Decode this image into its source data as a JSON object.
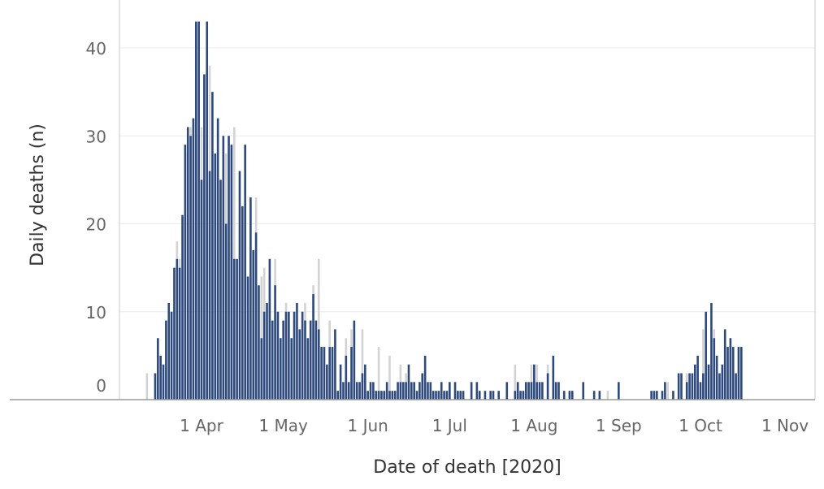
{
  "chart_data": {
    "type": "bar",
    "xlabel": "Date of death [2020]",
    "ylabel": "Daily deaths (n)",
    "ylim": [
      0,
      45
    ],
    "yticks": [
      0,
      10,
      20,
      30,
      40
    ],
    "grid": true,
    "xticks": [
      {
        "date": "2020-04-01",
        "label": "1 Apr"
      },
      {
        "date": "2020-05-01",
        "label": "1 May"
      },
      {
        "date": "2020-06-01",
        "label": "1 Jun"
      },
      {
        "date": "2020-07-01",
        "label": "1 Jul"
      },
      {
        "date": "2020-08-01",
        "label": "1 Aug"
      },
      {
        "date": "2020-09-01",
        "label": "1 Sep"
      },
      {
        "date": "2020-10-01",
        "label": "1 Oct"
      },
      {
        "date": "2020-11-01",
        "label": "1 Nov"
      }
    ],
    "series": [
      {
        "color": "#2e4a7d",
        "points": [
          [
            "2020-03-15",
            3
          ],
          [
            "2020-03-16",
            7
          ],
          [
            "2020-03-17",
            5
          ],
          [
            "2020-03-18",
            4
          ],
          [
            "2020-03-19",
            9
          ],
          [
            "2020-03-20",
            11
          ],
          [
            "2020-03-21",
            10
          ],
          [
            "2020-03-22",
            15
          ],
          [
            "2020-03-23",
            16
          ],
          [
            "2020-03-24",
            15
          ],
          [
            "2020-03-25",
            21
          ],
          [
            "2020-03-26",
            29
          ],
          [
            "2020-03-27",
            31
          ],
          [
            "2020-03-28",
            30
          ],
          [
            "2020-03-29",
            32
          ],
          [
            "2020-03-30",
            43
          ],
          [
            "2020-03-31",
            43
          ],
          [
            "2020-04-01",
            25
          ],
          [
            "2020-04-02",
            37
          ],
          [
            "2020-04-03",
            43
          ],
          [
            "2020-04-04",
            26
          ],
          [
            "2020-04-05",
            35
          ],
          [
            "2020-04-06",
            28
          ],
          [
            "2020-04-07",
            32
          ],
          [
            "2020-04-08",
            25
          ],
          [
            "2020-04-09",
            30
          ],
          [
            "2020-04-10",
            20
          ],
          [
            "2020-04-11",
            30
          ],
          [
            "2020-04-12",
            29
          ],
          [
            "2020-04-13",
            16
          ],
          [
            "2020-04-14",
            16
          ],
          [
            "2020-04-15",
            26
          ],
          [
            "2020-04-16",
            22
          ],
          [
            "2020-04-17",
            29
          ],
          [
            "2020-04-18",
            14
          ],
          [
            "2020-04-19",
            23
          ],
          [
            "2020-04-20",
            17
          ],
          [
            "2020-04-21",
            19
          ],
          [
            "2020-04-22",
            13
          ],
          [
            "2020-04-23",
            7
          ],
          [
            "2020-04-24",
            10
          ],
          [
            "2020-04-25",
            11
          ],
          [
            "2020-04-26",
            16
          ],
          [
            "2020-04-27",
            9
          ],
          [
            "2020-04-28",
            13
          ],
          [
            "2020-04-29",
            10
          ],
          [
            "2020-04-30",
            7
          ],
          [
            "2020-05-01",
            9
          ],
          [
            "2020-05-02",
            10
          ],
          [
            "2020-05-03",
            10
          ],
          [
            "2020-05-04",
            7
          ],
          [
            "2020-05-05",
            10
          ],
          [
            "2020-05-06",
            11
          ],
          [
            "2020-05-07",
            8
          ],
          [
            "2020-05-08",
            10
          ],
          [
            "2020-05-09",
            9
          ],
          [
            "2020-05-10",
            7
          ],
          [
            "2020-05-11",
            9
          ],
          [
            "2020-05-12",
            12
          ],
          [
            "2020-05-13",
            9
          ],
          [
            "2020-05-14",
            8
          ],
          [
            "2020-05-15",
            6
          ],
          [
            "2020-05-16",
            6
          ],
          [
            "2020-05-17",
            4
          ],
          [
            "2020-05-18",
            6
          ],
          [
            "2020-05-19",
            6
          ],
          [
            "2020-05-20",
            8
          ],
          [
            "2020-05-21",
            1
          ],
          [
            "2020-05-22",
            4
          ],
          [
            "2020-05-23",
            2
          ],
          [
            "2020-05-24",
            5
          ],
          [
            "2020-05-25",
            2
          ],
          [
            "2020-05-26",
            6
          ],
          [
            "2020-05-27",
            9
          ],
          [
            "2020-05-28",
            2
          ],
          [
            "2020-05-29",
            2
          ],
          [
            "2020-05-30",
            3
          ],
          [
            "2020-05-31",
            4
          ],
          [
            "2020-06-01",
            1
          ],
          [
            "2020-06-02",
            2
          ],
          [
            "2020-06-03",
            2
          ],
          [
            "2020-06-04",
            1
          ],
          [
            "2020-06-05",
            1
          ],
          [
            "2020-06-06",
            1
          ],
          [
            "2020-06-07",
            1
          ],
          [
            "2020-06-08",
            2
          ],
          [
            "2020-06-09",
            1
          ],
          [
            "2020-06-10",
            1
          ],
          [
            "2020-06-11",
            1
          ],
          [
            "2020-06-12",
            2
          ],
          [
            "2020-06-13",
            2
          ],
          [
            "2020-06-14",
            2
          ],
          [
            "2020-06-15",
            2
          ],
          [
            "2020-06-16",
            4
          ],
          [
            "2020-06-17",
            2
          ],
          [
            "2020-06-18",
            2
          ],
          [
            "2020-06-19",
            1
          ],
          [
            "2020-06-20",
            2
          ],
          [
            "2020-06-21",
            3
          ],
          [
            "2020-06-22",
            5
          ],
          [
            "2020-06-23",
            2
          ],
          [
            "2020-06-24",
            2
          ],
          [
            "2020-06-25",
            1
          ],
          [
            "2020-06-26",
            1
          ],
          [
            "2020-06-27",
            1
          ],
          [
            "2020-06-28",
            2
          ],
          [
            "2020-06-29",
            1
          ],
          [
            "2020-06-30",
            1
          ],
          [
            "2020-07-01",
            2
          ],
          [
            "2020-07-03",
            2
          ],
          [
            "2020-07-04",
            1
          ],
          [
            "2020-07-05",
            1
          ],
          [
            "2020-07-06",
            1
          ],
          [
            "2020-07-09",
            2
          ],
          [
            "2020-07-11",
            2
          ],
          [
            "2020-07-12",
            1
          ],
          [
            "2020-07-14",
            1
          ],
          [
            "2020-07-16",
            1
          ],
          [
            "2020-07-17",
            1
          ],
          [
            "2020-07-19",
            1
          ],
          [
            "2020-07-22",
            2
          ],
          [
            "2020-07-25",
            1
          ],
          [
            "2020-07-26",
            2
          ],
          [
            "2020-07-27",
            1
          ],
          [
            "2020-07-28",
            1
          ],
          [
            "2020-07-29",
            2
          ],
          [
            "2020-07-30",
            2
          ],
          [
            "2020-07-31",
            2
          ],
          [
            "2020-08-01",
            4
          ],
          [
            "2020-08-02",
            2
          ],
          [
            "2020-08-03",
            2
          ],
          [
            "2020-08-04",
            2
          ],
          [
            "2020-08-06",
            3
          ],
          [
            "2020-08-08",
            5
          ],
          [
            "2020-08-09",
            2
          ],
          [
            "2020-08-10",
            2
          ],
          [
            "2020-08-12",
            1
          ],
          [
            "2020-08-14",
            1
          ],
          [
            "2020-08-15",
            1
          ],
          [
            "2020-08-19",
            2
          ],
          [
            "2020-08-23",
            1
          ],
          [
            "2020-08-25",
            1
          ],
          [
            "2020-09-01",
            2
          ],
          [
            "2020-09-13",
            1
          ],
          [
            "2020-09-14",
            1
          ],
          [
            "2020-09-15",
            1
          ],
          [
            "2020-09-17",
            1
          ],
          [
            "2020-09-18",
            2
          ],
          [
            "2020-09-21",
            1
          ],
          [
            "2020-09-23",
            3
          ],
          [
            "2020-09-24",
            3
          ],
          [
            "2020-09-26",
            2
          ],
          [
            "2020-09-27",
            3
          ],
          [
            "2020-09-28",
            3
          ],
          [
            "2020-09-29",
            4
          ],
          [
            "2020-09-30",
            5
          ],
          [
            "2020-10-01",
            2
          ],
          [
            "2020-10-02",
            3
          ],
          [
            "2020-10-03",
            10
          ],
          [
            "2020-10-04",
            4
          ],
          [
            "2020-10-05",
            11
          ],
          [
            "2020-10-06",
            7
          ],
          [
            "2020-10-07",
            5
          ],
          [
            "2020-10-08",
            3
          ],
          [
            "2020-10-09",
            4
          ],
          [
            "2020-10-10",
            8
          ],
          [
            "2020-10-11",
            6
          ],
          [
            "2020-10-12",
            7
          ],
          [
            "2020-10-13",
            6
          ],
          [
            "2020-10-14",
            3
          ],
          [
            "2020-10-15",
            6
          ],
          [
            "2020-10-16",
            6
          ]
        ]
      },
      {
        "color": "#d3d3d3",
        "points": [
          [
            "2020-03-12",
            3
          ],
          [
            "2020-03-23",
            18
          ],
          [
            "2020-03-24",
            16
          ],
          [
            "2020-03-26",
            28
          ],
          [
            "2020-03-28",
            31
          ],
          [
            "2020-04-01",
            31
          ],
          [
            "2020-04-04",
            38
          ],
          [
            "2020-04-08",
            24
          ],
          [
            "2020-04-10",
            28
          ],
          [
            "2020-04-12",
            18
          ],
          [
            "2020-04-13",
            31
          ],
          [
            "2020-04-21",
            23
          ],
          [
            "2020-04-23",
            14
          ],
          [
            "2020-04-24",
            15
          ],
          [
            "2020-04-26",
            14
          ],
          [
            "2020-04-28",
            16
          ],
          [
            "2020-05-02",
            11
          ],
          [
            "2020-05-05",
            9
          ],
          [
            "2020-05-09",
            11
          ],
          [
            "2020-05-12",
            13
          ],
          [
            "2020-05-14",
            16
          ],
          [
            "2020-05-18",
            9
          ],
          [
            "2020-05-20",
            7
          ],
          [
            "2020-05-24",
            7
          ],
          [
            "2020-05-26",
            8
          ],
          [
            "2020-05-30",
            8
          ],
          [
            "2020-06-05",
            6
          ],
          [
            "2020-06-09",
            5
          ],
          [
            "2020-06-13",
            4
          ],
          [
            "2020-06-15",
            3
          ],
          [
            "2020-07-01",
            2
          ],
          [
            "2020-07-25",
            4
          ],
          [
            "2020-07-31",
            4
          ],
          [
            "2020-08-02",
            4
          ],
          [
            "2020-08-06",
            4
          ],
          [
            "2020-08-28",
            1
          ],
          [
            "2020-09-19",
            2
          ],
          [
            "2020-09-26",
            3
          ],
          [
            "2020-10-02",
            8
          ],
          [
            "2020-10-06",
            8
          ],
          [
            "2020-10-12",
            6
          ]
        ]
      }
    ]
  }
}
